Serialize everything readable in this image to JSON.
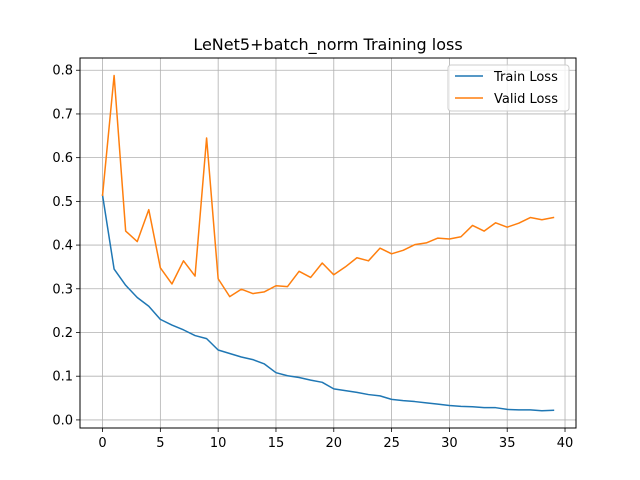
{
  "chart_data": {
    "type": "line",
    "title": "LeNet5+batch_norm Training loss",
    "xlabel": "",
    "ylabel": "",
    "xlim": [
      -1.95,
      40.95
    ],
    "ylim": [
      -0.0185,
      0.828
    ],
    "grid": true,
    "legend_position": "top-right",
    "x_ticks": [
      0,
      5,
      10,
      15,
      20,
      25,
      30,
      35,
      40
    ],
    "y_ticks": [
      0.0,
      0.1,
      0.2,
      0.3,
      0.4,
      0.5,
      0.6,
      0.7,
      0.8
    ],
    "x_tick_labels": [
      "0",
      "5",
      "10",
      "15",
      "20",
      "25",
      "30",
      "35",
      "40"
    ],
    "y_tick_labels": [
      "0.0",
      "0.1",
      "0.2",
      "0.3",
      "0.4",
      "0.5",
      "0.6",
      "0.7",
      "0.8"
    ],
    "x": [
      0,
      1,
      2,
      3,
      4,
      5,
      6,
      7,
      8,
      9,
      10,
      11,
      12,
      13,
      14,
      15,
      16,
      17,
      18,
      19,
      20,
      21,
      22,
      23,
      24,
      25,
      26,
      27,
      28,
      29,
      30,
      31,
      32,
      33,
      34,
      35,
      36,
      37,
      38,
      39
    ],
    "series": [
      {
        "name": "Train Loss",
        "color": "#1f77b4",
        "values": [
          0.514,
          0.345,
          0.308,
          0.28,
          0.26,
          0.23,
          0.217,
          0.206,
          0.193,
          0.186,
          0.16,
          0.152,
          0.144,
          0.138,
          0.128,
          0.108,
          0.101,
          0.097,
          0.091,
          0.086,
          0.071,
          0.067,
          0.063,
          0.058,
          0.055,
          0.047,
          0.044,
          0.042,
          0.039,
          0.036,
          0.033,
          0.031,
          0.03,
          0.028,
          0.028,
          0.024,
          0.023,
          0.023,
          0.021,
          0.022
        ]
      },
      {
        "name": "Valid Loss",
        "color": "#ff7f0e",
        "values": [
          0.514,
          0.788,
          0.432,
          0.408,
          0.481,
          0.348,
          0.311,
          0.364,
          0.329,
          0.645,
          0.323,
          0.282,
          0.299,
          0.289,
          0.293,
          0.307,
          0.305,
          0.34,
          0.326,
          0.359,
          0.332,
          0.35,
          0.371,
          0.364,
          0.393,
          0.38,
          0.388,
          0.401,
          0.405,
          0.416,
          0.414,
          0.419,
          0.445,
          0.432,
          0.451,
          0.441,
          0.45,
          0.463,
          0.458,
          0.463
        ]
      }
    ]
  }
}
